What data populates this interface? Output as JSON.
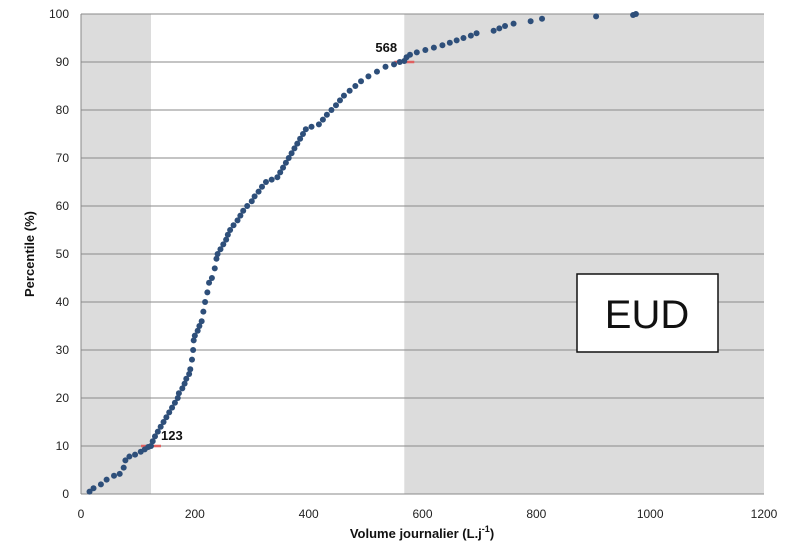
{
  "chart_data": {
    "type": "scatter",
    "xlabel": "Volume journalier (L.j",
    "xlabel_sup": "-1",
    "xlabel_close": ")",
    "ylabel": "Percentile (%)",
    "xlim": [
      0,
      1200
    ],
    "ylim": [
      0,
      100
    ],
    "xticks": [
      "0",
      "200",
      "400",
      "600",
      "800",
      "1000",
      "1200"
    ],
    "yticks": [
      "0",
      "10",
      "20",
      "30",
      "40",
      "50",
      "60",
      "70",
      "80",
      "90",
      "100"
    ],
    "grid": true,
    "shaded_regions": [
      {
        "x0": 0,
        "x1": 123,
        "color": "#dcdcdc"
      },
      {
        "x0": 568,
        "x1": 1200,
        "color": "#dcdcdc"
      }
    ],
    "markers": [
      {
        "x": 123,
        "y": 10,
        "label": "123",
        "color": "#e06060"
      },
      {
        "x": 568,
        "y": 90,
        "label": "568",
        "color": "#e06060"
      }
    ],
    "box_label": "EUD",
    "point_color": "#2e4f7a",
    "series": [
      {
        "points": [
          [
            15,
            0.5
          ],
          [
            22,
            1.2
          ],
          [
            35,
            2
          ],
          [
            45,
            3
          ],
          [
            58,
            3.8
          ],
          [
            68,
            4.2
          ],
          [
            75,
            5.5
          ],
          [
            78,
            7
          ],
          [
            85,
            7.8
          ],
          [
            95,
            8.2
          ],
          [
            105,
            8.8
          ],
          [
            112,
            9.3
          ],
          [
            118,
            9.8
          ],
          [
            123,
            10
          ],
          [
            126,
            11
          ],
          [
            130,
            12
          ],
          [
            135,
            13
          ],
          [
            140,
            14
          ],
          [
            145,
            15
          ],
          [
            150,
            16
          ],
          [
            155,
            17
          ],
          [
            160,
            18
          ],
          [
            165,
            19
          ],
          [
            170,
            20
          ],
          [
            172,
            21
          ],
          [
            178,
            22
          ],
          [
            182,
            23
          ],
          [
            185,
            24
          ],
          [
            190,
            25
          ],
          [
            192,
            26
          ],
          [
            195,
            28
          ],
          [
            197,
            30
          ],
          [
            198,
            32
          ],
          [
            200,
            33
          ],
          [
            205,
            34
          ],
          [
            208,
            35
          ],
          [
            212,
            36
          ],
          [
            215,
            38
          ],
          [
            218,
            40
          ],
          [
            222,
            42
          ],
          [
            225,
            44
          ],
          [
            230,
            45
          ],
          [
            235,
            47
          ],
          [
            238,
            49
          ],
          [
            240,
            50
          ],
          [
            245,
            51
          ],
          [
            250,
            52
          ],
          [
            255,
            53
          ],
          [
            258,
            54
          ],
          [
            262,
            55
          ],
          [
            268,
            56
          ],
          [
            275,
            57
          ],
          [
            280,
            58
          ],
          [
            285,
            59
          ],
          [
            292,
            60
          ],
          [
            300,
            61
          ],
          [
            305,
            62
          ],
          [
            312,
            63
          ],
          [
            318,
            64
          ],
          [
            325,
            65
          ],
          [
            335,
            65.5
          ],
          [
            345,
            66
          ],
          [
            350,
            67
          ],
          [
            355,
            68
          ],
          [
            360,
            69
          ],
          [
            365,
            70
          ],
          [
            370,
            71
          ],
          [
            375,
            72
          ],
          [
            380,
            73
          ],
          [
            385,
            74
          ],
          [
            390,
            75
          ],
          [
            395,
            76
          ],
          [
            405,
            76.5
          ],
          [
            418,
            77
          ],
          [
            425,
            78
          ],
          [
            432,
            79
          ],
          [
            440,
            80
          ],
          [
            448,
            81
          ],
          [
            455,
            82
          ],
          [
            462,
            83
          ],
          [
            472,
            84
          ],
          [
            482,
            85
          ],
          [
            492,
            86
          ],
          [
            505,
            87
          ],
          [
            520,
            88
          ],
          [
            535,
            89
          ],
          [
            550,
            89.5
          ],
          [
            560,
            90
          ],
          [
            568,
            90.2
          ],
          [
            572,
            91
          ],
          [
            578,
            91.5
          ],
          [
            590,
            92
          ],
          [
            605,
            92.5
          ],
          [
            620,
            93
          ],
          [
            635,
            93.5
          ],
          [
            648,
            94
          ],
          [
            660,
            94.5
          ],
          [
            672,
            95
          ],
          [
            685,
            95.5
          ],
          [
            695,
            96
          ],
          [
            725,
            96.5
          ],
          [
            735,
            97
          ],
          [
            745,
            97.5
          ],
          [
            760,
            98
          ],
          [
            790,
            98.5
          ],
          [
            810,
            99
          ],
          [
            905,
            99.5
          ],
          [
            970,
            99.8
          ],
          [
            975,
            100
          ]
        ]
      }
    ]
  }
}
